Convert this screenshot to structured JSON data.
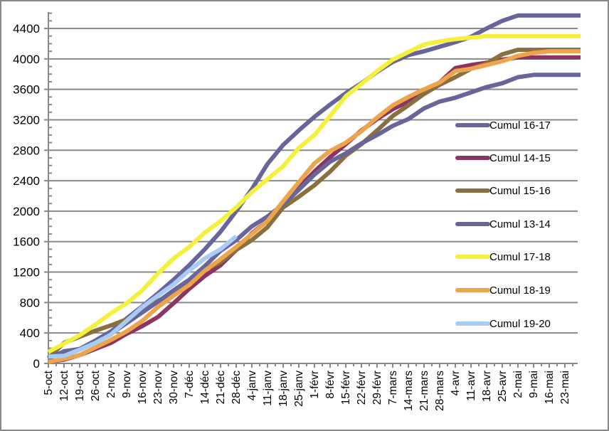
{
  "chart_data": {
    "type": "line",
    "title": "",
    "xlabel": "",
    "ylabel": "",
    "ylim": [
      0,
      4600
    ],
    "yticks": [
      0,
      400,
      800,
      1200,
      1600,
      2000,
      2400,
      2800,
      3200,
      3600,
      4000,
      4400
    ],
    "grid": "horizontal",
    "legend_position": "right",
    "categories": [
      "5-oct",
      "12-oct",
      "19-oct",
      "26-oct",
      "2-nov",
      "9-nov",
      "16-nov",
      "23-nov",
      "30-nov",
      "7-déc",
      "14-déc",
      "21-déc",
      "28-déc",
      "4-janv",
      "11-janv",
      "18-janv",
      "25-janv",
      "1-févr",
      "8-févr",
      "15-févr",
      "22-févr",
      "29-févr",
      "7-mars",
      "14-mars",
      "21-mars",
      "28-mars",
      "4-avr",
      "11-avr",
      "18-avr",
      "25-avr",
      "2-mai",
      "9-mai",
      "16-mai",
      "23-mai",
      ""
    ],
    "series": [
      {
        "name": "Cumul 16-17",
        "color": "#67659A",
        "values": [
          60,
          160,
          190,
          300,
          420,
          590,
          750,
          920,
          1100,
          1290,
          1500,
          1730,
          2000,
          2290,
          2620,
          2870,
          3060,
          3240,
          3400,
          3550,
          3680,
          3830,
          3960,
          4050,
          4100,
          4160,
          4220,
          4290,
          4400,
          4500,
          4570,
          4570,
          4570,
          4570,
          4570
        ]
      },
      {
        "name": "Cumul 14-15",
        "color": "#8C3462",
        "values": [
          20,
          50,
          110,
          190,
          270,
          390,
          490,
          610,
          790,
          980,
          1150,
          1290,
          1490,
          1710,
          1870,
          2100,
          2310,
          2520,
          2710,
          2880,
          3060,
          3210,
          3340,
          3440,
          3590,
          3690,
          3880,
          3920,
          3950,
          3990,
          4020,
          4020,
          4020,
          4020,
          4020
        ]
      },
      {
        "name": "Cumul 15-16",
        "color": "#8A7040",
        "values": [
          70,
          270,
          350,
          430,
          500,
          580,
          700,
          820,
          930,
          1070,
          1230,
          1330,
          1490,
          1620,
          1790,
          2050,
          2190,
          2340,
          2520,
          2730,
          2880,
          3060,
          3250,
          3390,
          3540,
          3660,
          3760,
          3870,
          3940,
          4060,
          4120,
          4120,
          4120,
          4120,
          4120
        ]
      },
      {
        "name": "Cumul 13-14",
        "color": "#67659A",
        "values": [
          80,
          150,
          190,
          270,
          390,
          530,
          670,
          810,
          960,
          1100,
          1280,
          1480,
          1620,
          1800,
          1930,
          2090,
          2280,
          2480,
          2650,
          2760,
          2890,
          3000,
          3120,
          3210,
          3350,
          3440,
          3490,
          3560,
          3630,
          3680,
          3760,
          3790,
          3790,
          3790,
          3790
        ]
      },
      {
        "name": "Cumul 17-18",
        "color": "#F5F03C",
        "values": [
          150,
          260,
          370,
          510,
          660,
          790,
          960,
          1180,
          1380,
          1530,
          1720,
          1870,
          2050,
          2250,
          2420,
          2590,
          2830,
          3000,
          3250,
          3510,
          3670,
          3840,
          3990,
          4090,
          4190,
          4230,
          4260,
          4280,
          4300,
          4300,
          4300,
          4300,
          4300,
          4300,
          4300
        ]
      },
      {
        "name": "Cumul 18-19",
        "color": "#EDA54C",
        "values": [
          20,
          60,
          110,
          210,
          310,
          420,
          560,
          740,
          890,
          1030,
          1220,
          1370,
          1530,
          1700,
          1870,
          2130,
          2380,
          2630,
          2790,
          2900,
          3050,
          3230,
          3390,
          3500,
          3600,
          3690,
          3840,
          3870,
          3920,
          3970,
          4040,
          4080,
          4100,
          4100,
          4100
        ]
      },
      {
        "name": "Cumul 19-20",
        "color": "#A8CCF5",
        "values": [
          90,
          100,
          180,
          270,
          380,
          560,
          740,
          890,
          1040,
          1220,
          1380,
          1500,
          1670,
          null,
          null,
          null,
          null,
          null,
          null,
          null,
          null,
          null,
          null,
          null,
          null,
          null,
          null,
          null,
          null,
          null,
          null,
          null,
          null,
          null,
          null
        ]
      }
    ]
  }
}
